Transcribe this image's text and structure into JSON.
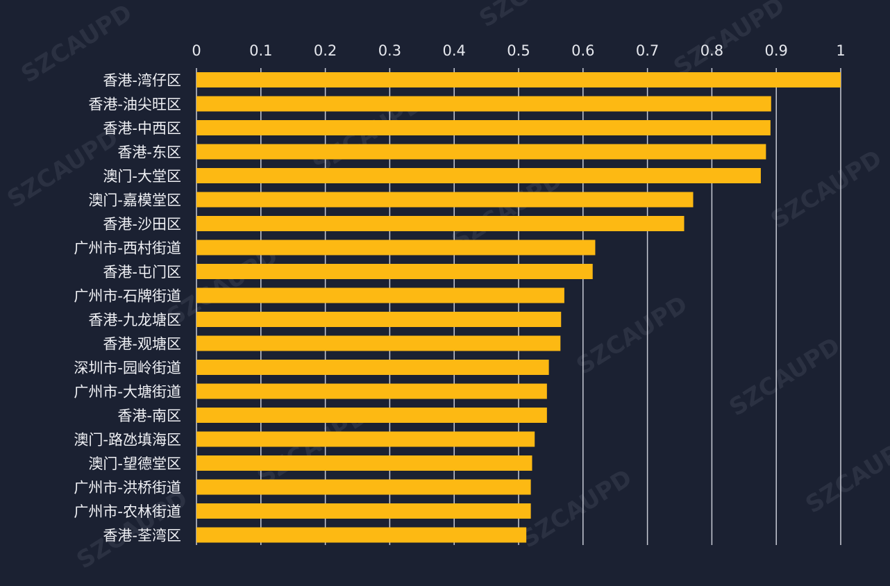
{
  "colors": {
    "background": "#1b2132",
    "bar": "#fdb913",
    "gridline": "#c9ccd6",
    "text": "#f0f1f5"
  },
  "watermark": "SZCAUPD",
  "chart_data": {
    "type": "bar",
    "orientation": "horizontal",
    "title": "",
    "xlabel": "",
    "ylabel": "",
    "xlim": [
      0,
      1
    ],
    "xticks": [
      0,
      0.1,
      0.2,
      0.3,
      0.4,
      0.5,
      0.6,
      0.7,
      0.8,
      0.9,
      1
    ],
    "xtick_labels": [
      "0",
      "0.1",
      "0.2",
      "0.3",
      "0.4",
      "0.5",
      "0.6",
      "0.7",
      "0.8",
      "0.9",
      "1"
    ],
    "axis_position": "top",
    "grid": true,
    "categories": [
      "香港-湾仔区",
      "香港-油尖旺区",
      "香港-中西区",
      "香港-东区",
      "澳门-大堂区",
      "澳门-嘉模堂区",
      "香港-沙田区",
      "广州市-西村街道",
      "香港-屯门区",
      "广州市-石牌街道",
      "香港-九龙塘区",
      "香港-观塘区",
      "深圳市-园岭街道",
      "广州市-大塘街道",
      "香港-南区",
      "澳门-路氹填海区",
      "澳门-望德堂区",
      "广州市-洪桥街道",
      "广州市-农林街道",
      "香港-荃湾区"
    ],
    "values": [
      1.0,
      0.892,
      0.891,
      0.884,
      0.876,
      0.771,
      0.757,
      0.619,
      0.615,
      0.571,
      0.566,
      0.565,
      0.547,
      0.544,
      0.544,
      0.525,
      0.521,
      0.519,
      0.519,
      0.512
    ]
  }
}
